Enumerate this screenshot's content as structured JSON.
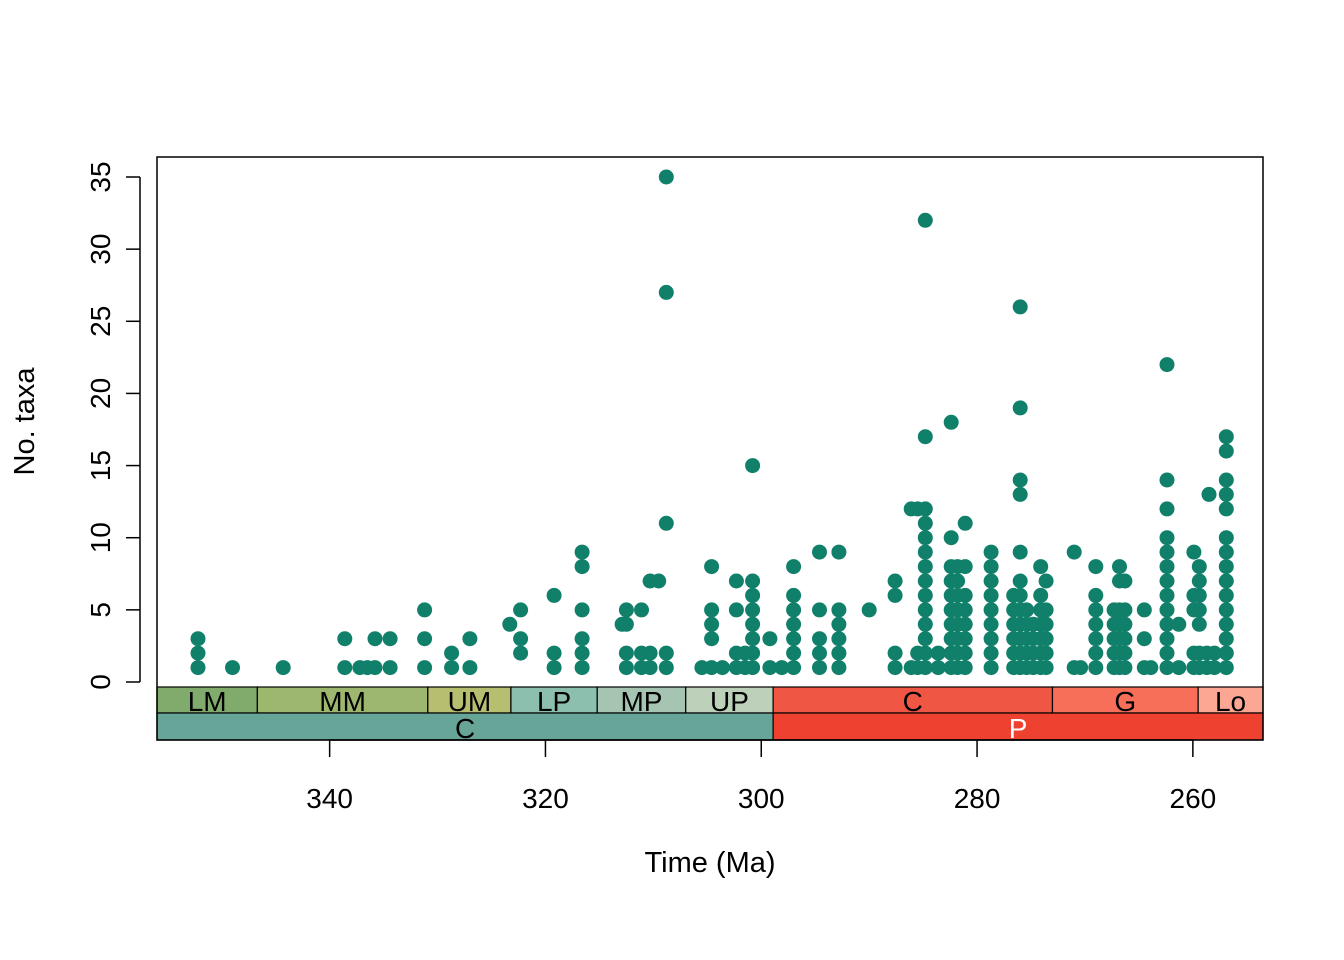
{
  "chart_data": {
    "type": "scatter",
    "xlabel": "Time (Ma)",
    "ylabel": "No. taxa",
    "x_reversed": true,
    "xlim": [
      356,
      253.5
    ],
    "ylim": [
      0,
      35
    ],
    "x_ticks": [
      340,
      320,
      300,
      280,
      260
    ],
    "y_ticks": [
      0,
      5,
      10,
      15,
      20,
      25,
      30,
      35
    ],
    "marker_color": "#11806A",
    "grid": false,
    "series": [
      {
        "points": [
          [
            352.2,
            1
          ],
          [
            352.2,
            2
          ],
          [
            352.2,
            3
          ],
          [
            349,
            1
          ],
          [
            344.3,
            1
          ],
          [
            338.6,
            1
          ],
          [
            338.6,
            3
          ],
          [
            337.2,
            1
          ],
          [
            336.5,
            1
          ],
          [
            335.8,
            1
          ],
          [
            335.8,
            3
          ],
          [
            334.4,
            1
          ],
          [
            334.4,
            3
          ],
          [
            331.2,
            1
          ],
          [
            331.2,
            3
          ],
          [
            331.2,
            5
          ],
          [
            328.7,
            1
          ],
          [
            328.7,
            2
          ],
          [
            327,
            1
          ],
          [
            327,
            3
          ],
          [
            323.3,
            4
          ],
          [
            322.3,
            2
          ],
          [
            322.3,
            3
          ],
          [
            322.3,
            5
          ],
          [
            319.2,
            1
          ],
          [
            319.2,
            2
          ],
          [
            319.2,
            6
          ],
          [
            316.6,
            1
          ],
          [
            316.6,
            2
          ],
          [
            316.6,
            3
          ],
          [
            316.6,
            5
          ],
          [
            316.6,
            8
          ],
          [
            316.6,
            9
          ],
          [
            312.9,
            4
          ],
          [
            312.5,
            1
          ],
          [
            312.5,
            2
          ],
          [
            312.5,
            4
          ],
          [
            312.5,
            5
          ],
          [
            311.1,
            1
          ],
          [
            311.1,
            2
          ],
          [
            311.1,
            5
          ],
          [
            310.3,
            1
          ],
          [
            310.3,
            2
          ],
          [
            310.3,
            7
          ],
          [
            309.5,
            7
          ],
          [
            308.8,
            1
          ],
          [
            308.8,
            2
          ],
          [
            308.8,
            11
          ],
          [
            308.8,
            27
          ],
          [
            308.8,
            35
          ],
          [
            305.5,
            1
          ],
          [
            304.6,
            1
          ],
          [
            304.6,
            3
          ],
          [
            304.6,
            4
          ],
          [
            304.6,
            5
          ],
          [
            304.6,
            8
          ],
          [
            303.6,
            1
          ],
          [
            302.3,
            1
          ],
          [
            302.3,
            2
          ],
          [
            302.3,
            5
          ],
          [
            302.3,
            7
          ],
          [
            301.5,
            1
          ],
          [
            301.5,
            2
          ],
          [
            300.8,
            1
          ],
          [
            300.8,
            2
          ],
          [
            300.8,
            3
          ],
          [
            300.8,
            4
          ],
          [
            300.8,
            5
          ],
          [
            300.8,
            6
          ],
          [
            300.8,
            7
          ],
          [
            300.8,
            15
          ],
          [
            299.2,
            1
          ],
          [
            299.2,
            3
          ],
          [
            298.1,
            1
          ],
          [
            297,
            1
          ],
          [
            297,
            2
          ],
          [
            297,
            3
          ],
          [
            297,
            4
          ],
          [
            297,
            5
          ],
          [
            297,
            6
          ],
          [
            297,
            8
          ],
          [
            294.6,
            1
          ],
          [
            294.6,
            2
          ],
          [
            294.6,
            3
          ],
          [
            294.6,
            5
          ],
          [
            294.6,
            9
          ],
          [
            292.8,
            1
          ],
          [
            292.8,
            2
          ],
          [
            292.8,
            3
          ],
          [
            292.8,
            4
          ],
          [
            292.8,
            5
          ],
          [
            292.8,
            9
          ],
          [
            290,
            5
          ],
          [
            287.6,
            1
          ],
          [
            287.6,
            2
          ],
          [
            287.6,
            6
          ],
          [
            287.6,
            7
          ],
          [
            286.1,
            1
          ],
          [
            286.1,
            12
          ],
          [
            285.5,
            1
          ],
          [
            285.5,
            2
          ],
          [
            285.5,
            12
          ],
          [
            284.8,
            1
          ],
          [
            284.8,
            2
          ],
          [
            284.8,
            3
          ],
          [
            284.8,
            4
          ],
          [
            284.8,
            5
          ],
          [
            284.8,
            6
          ],
          [
            284.8,
            7
          ],
          [
            284.8,
            8
          ],
          [
            284.8,
            9
          ],
          [
            284.8,
            10
          ],
          [
            284.8,
            11
          ],
          [
            284.8,
            12
          ],
          [
            284.8,
            17
          ],
          [
            284.8,
            32
          ],
          [
            283.6,
            1
          ],
          [
            283.6,
            2
          ],
          [
            282.4,
            1
          ],
          [
            282.4,
            2
          ],
          [
            282.4,
            3
          ],
          [
            282.4,
            4
          ],
          [
            282.4,
            5
          ],
          [
            282.4,
            6
          ],
          [
            282.4,
            7
          ],
          [
            282.4,
            8
          ],
          [
            282.4,
            10
          ],
          [
            282.4,
            18
          ],
          [
            281.8,
            1
          ],
          [
            281.8,
            2
          ],
          [
            281.8,
            3
          ],
          [
            281.8,
            4
          ],
          [
            281.8,
            5
          ],
          [
            281.8,
            6
          ],
          [
            281.8,
            7
          ],
          [
            281.8,
            8
          ],
          [
            281.1,
            1
          ],
          [
            281.1,
            2
          ],
          [
            281.1,
            3
          ],
          [
            281.1,
            4
          ],
          [
            281.1,
            5
          ],
          [
            281.1,
            6
          ],
          [
            281.1,
            8
          ],
          [
            281.1,
            11
          ],
          [
            278.7,
            1
          ],
          [
            278.7,
            2
          ],
          [
            278.7,
            3
          ],
          [
            278.7,
            4
          ],
          [
            278.7,
            5
          ],
          [
            278.7,
            6
          ],
          [
            278.7,
            7
          ],
          [
            278.7,
            8
          ],
          [
            278.7,
            9
          ],
          [
            276.6,
            1
          ],
          [
            276.6,
            2
          ],
          [
            276.6,
            3
          ],
          [
            276.6,
            4
          ],
          [
            276.6,
            5
          ],
          [
            276.6,
            6
          ],
          [
            276,
            1
          ],
          [
            276,
            2
          ],
          [
            276,
            3
          ],
          [
            276,
            4
          ],
          [
            276,
            5
          ],
          [
            276,
            6
          ],
          [
            276,
            7
          ],
          [
            276,
            9
          ],
          [
            276,
            13
          ],
          [
            276,
            14
          ],
          [
            276,
            19
          ],
          [
            276,
            26
          ],
          [
            275.4,
            1
          ],
          [
            275.4,
            2
          ],
          [
            275.4,
            3
          ],
          [
            275.4,
            4
          ],
          [
            275.4,
            5
          ],
          [
            274.8,
            1
          ],
          [
            274.8,
            2
          ],
          [
            274.8,
            3
          ],
          [
            274.8,
            4
          ],
          [
            274.1,
            1
          ],
          [
            274.1,
            2
          ],
          [
            274.1,
            3
          ],
          [
            274.1,
            4
          ],
          [
            274.1,
            5
          ],
          [
            274.1,
            6
          ],
          [
            274.1,
            8
          ],
          [
            273.6,
            1
          ],
          [
            273.6,
            2
          ],
          [
            273.6,
            3
          ],
          [
            273.6,
            4
          ],
          [
            273.6,
            5
          ],
          [
            273.6,
            7
          ],
          [
            271,
            1
          ],
          [
            271,
            9
          ],
          [
            270.4,
            1
          ],
          [
            269,
            1
          ],
          [
            269,
            2
          ],
          [
            269,
            3
          ],
          [
            269,
            4
          ],
          [
            269,
            5
          ],
          [
            269,
            6
          ],
          [
            269,
            8
          ],
          [
            267.3,
            1
          ],
          [
            267.3,
            2
          ],
          [
            267.3,
            3
          ],
          [
            267.3,
            4
          ],
          [
            267.3,
            5
          ],
          [
            266.8,
            1
          ],
          [
            266.8,
            2
          ],
          [
            266.8,
            3
          ],
          [
            266.8,
            4
          ],
          [
            266.8,
            5
          ],
          [
            266.8,
            7
          ],
          [
            266.8,
            8
          ],
          [
            266.3,
            1
          ],
          [
            266.3,
            2
          ],
          [
            266.3,
            3
          ],
          [
            266.3,
            4
          ],
          [
            266.3,
            5
          ],
          [
            266.3,
            7
          ],
          [
            264.5,
            1
          ],
          [
            264.5,
            3
          ],
          [
            264.5,
            5
          ],
          [
            263.9,
            1
          ],
          [
            262.4,
            1
          ],
          [
            262.4,
            2
          ],
          [
            262.4,
            3
          ],
          [
            262.4,
            4
          ],
          [
            262.4,
            5
          ],
          [
            262.4,
            6
          ],
          [
            262.4,
            7
          ],
          [
            262.4,
            8
          ],
          [
            262.4,
            9
          ],
          [
            262.4,
            10
          ],
          [
            262.4,
            12
          ],
          [
            262.4,
            14
          ],
          [
            262.4,
            22
          ],
          [
            261.3,
            1
          ],
          [
            261.3,
            4
          ],
          [
            259.9,
            1
          ],
          [
            259.9,
            2
          ],
          [
            259.9,
            5
          ],
          [
            259.9,
            6
          ],
          [
            259.9,
            9
          ],
          [
            259.4,
            1
          ],
          [
            259.4,
            2
          ],
          [
            259.4,
            4
          ],
          [
            259.4,
            5
          ],
          [
            259.4,
            6
          ],
          [
            259.4,
            7
          ],
          [
            259.4,
            8
          ],
          [
            258.7,
            1
          ],
          [
            258.7,
            2
          ],
          [
            258.5,
            13
          ],
          [
            258,
            1
          ],
          [
            258,
            2
          ],
          [
            256.9,
            1
          ],
          [
            256.9,
            2
          ],
          [
            256.9,
            3
          ],
          [
            256.9,
            4
          ],
          [
            256.9,
            5
          ],
          [
            256.9,
            6
          ],
          [
            256.9,
            7
          ],
          [
            256.9,
            8
          ],
          [
            256.9,
            9
          ],
          [
            256.9,
            10
          ],
          [
            256.9,
            12
          ],
          [
            256.9,
            13
          ],
          [
            256.9,
            14
          ],
          [
            256.9,
            16
          ],
          [
            256.9,
            17
          ]
        ]
      }
    ],
    "timescale": {
      "rows": [
        [
          {
            "label": "LM",
            "start": 358.9,
            "end": 346.7,
            "color": "#80AB6C",
            "text_color": "#000000"
          },
          {
            "label": "MM",
            "start": 346.7,
            "end": 330.9,
            "color": "#9DB86E",
            "text_color": "#000000"
          },
          {
            "label": "UM",
            "start": 330.9,
            "end": 323.2,
            "color": "#B8BE70",
            "text_color": "#000000"
          },
          {
            "label": "LP",
            "start": 323.2,
            "end": 315.2,
            "color": "#8CBFAE",
            "text_color": "#000000"
          },
          {
            "label": "MP",
            "start": 315.2,
            "end": 307.0,
            "color": "#A5C5B2",
            "text_color": "#000000"
          },
          {
            "label": "UP",
            "start": 307.0,
            "end": 298.9,
            "color": "#BDD1BA",
            "text_color": "#000000"
          },
          {
            "label": "C",
            "start": 298.9,
            "end": 273.01,
            "color": "#EF5744",
            "text_color": "#000000"
          },
          {
            "label": "G",
            "start": 273.01,
            "end": 259.51,
            "color": "#F76F59",
            "text_color": "#000000"
          },
          {
            "label": "Lo",
            "start": 259.51,
            "end": 251.902,
            "color": "#FBA794",
            "text_color": "#000000"
          }
        ],
        [
          {
            "label": "C",
            "start": 358.9,
            "end": 298.9,
            "color": "#67A599",
            "text_color": "#000000"
          },
          {
            "label": "P",
            "start": 298.9,
            "end": 251.902,
            "color": "#EF4130",
            "text_color": "#FFFFFF"
          }
        ]
      ]
    }
  }
}
